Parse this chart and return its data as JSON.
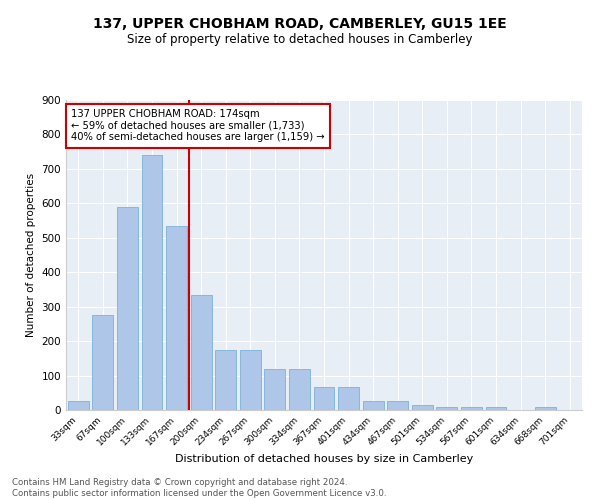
{
  "title1": "137, UPPER CHOBHAM ROAD, CAMBERLEY, GU15 1EE",
  "title2": "Size of property relative to detached houses in Camberley",
  "xlabel": "Distribution of detached houses by size in Camberley",
  "ylabel": "Number of detached properties",
  "categories": [
    "33sqm",
    "67sqm",
    "100sqm",
    "133sqm",
    "167sqm",
    "200sqm",
    "234sqm",
    "267sqm",
    "300sqm",
    "334sqm",
    "367sqm",
    "401sqm",
    "434sqm",
    "467sqm",
    "501sqm",
    "534sqm",
    "567sqm",
    "601sqm",
    "634sqm",
    "668sqm",
    "701sqm"
  ],
  "values": [
    25,
    275,
    590,
    740,
    535,
    335,
    175,
    175,
    120,
    120,
    67,
    67,
    25,
    25,
    15,
    10,
    10,
    10,
    0,
    10,
    0
  ],
  "bar_color": "#aec6e8",
  "bar_edge_color": "#6aaad4",
  "vline_x": 4.5,
  "vline_color": "#cc0000",
  "annotation_text": "137 UPPER CHOBHAM ROAD: 174sqm\n← 59% of detached houses are smaller (1,733)\n40% of semi-detached houses are larger (1,159) →",
  "annotation_box_color": "#ffffff",
  "annotation_box_edge": "#cc0000",
  "ylim": [
    0,
    900
  ],
  "yticks": [
    0,
    100,
    200,
    300,
    400,
    500,
    600,
    700,
    800,
    900
  ],
  "footer": "Contains HM Land Registry data © Crown copyright and database right 2024.\nContains public sector information licensed under the Open Government Licence v3.0.",
  "plot_bg_color": "#e8eef5"
}
